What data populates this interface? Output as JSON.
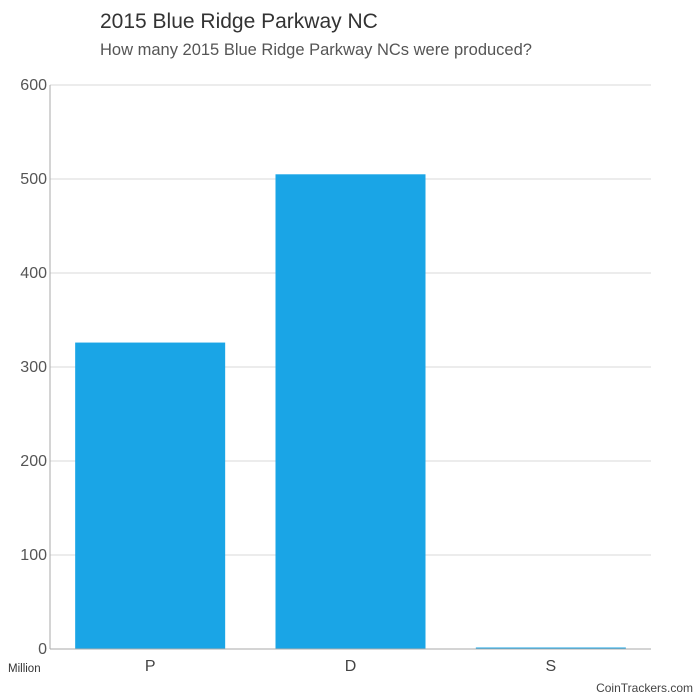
{
  "title": "2015 Blue Ridge Parkway NC",
  "subtitle": "How many 2015 Blue Ridge Parkway NCs were produced?",
  "unit_label": "Million",
  "credit": "CoinTrackers.com",
  "chart_data": {
    "type": "bar",
    "categories": [
      "P",
      "D",
      "S"
    ],
    "values": [
      326,
      505,
      1.5
    ],
    "ylabel": "",
    "xlabel": "",
    "ylim": [
      0,
      600
    ],
    "yticks": [
      0,
      100,
      200,
      300,
      400,
      500,
      600
    ],
    "grid": true,
    "legend": "none",
    "bar_color": "#1aa5e6",
    "grid_color": "#d9d9d9",
    "axis_color": "#aaaaaa"
  }
}
